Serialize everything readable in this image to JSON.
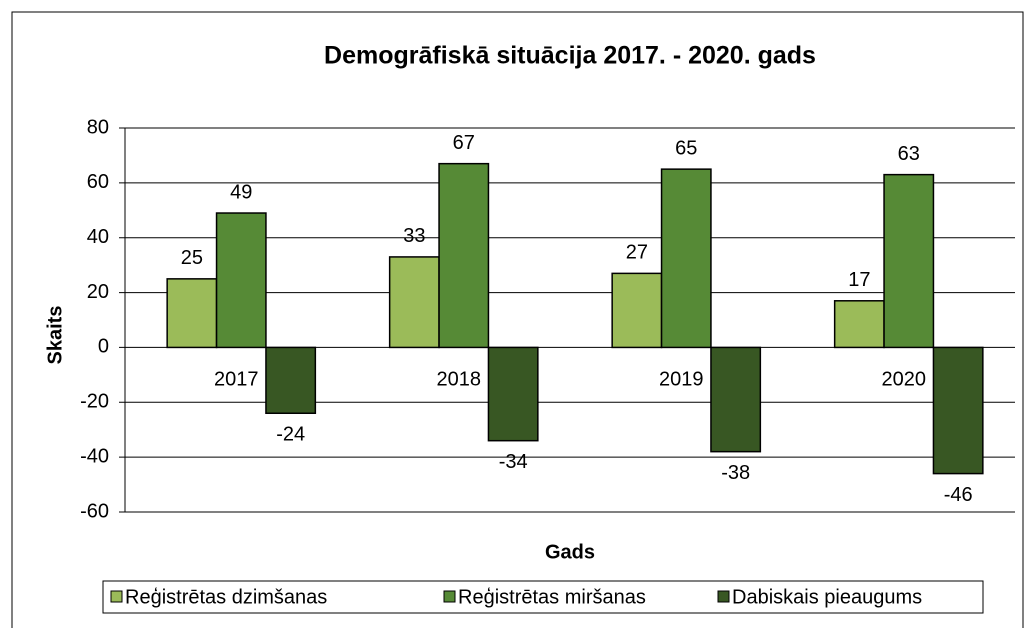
{
  "chart_data": {
    "type": "bar",
    "title": "Demogrāfiskā situācija 2017. - 2020. gads",
    "xlabel": "Gads",
    "ylabel": "Skaits",
    "categories": [
      "2017",
      "2018",
      "2019",
      "2020"
    ],
    "series": [
      {
        "name": "Reģistrētas dzimšanas",
        "color": "#9bbb59",
        "values": [
          25,
          33,
          27,
          17
        ]
      },
      {
        "name": "Reģistrētas miršanas",
        "color": "#568a36",
        "values": [
          49,
          67,
          65,
          63
        ]
      },
      {
        "name": "Dabiskais pieaugums",
        "color": "#385723",
        "values": [
          -24,
          -34,
          -38,
          -46
        ]
      }
    ],
    "ylim": [
      -60,
      80
    ],
    "yticks": [
      -60,
      -40,
      -20,
      0,
      20,
      40,
      60,
      80
    ],
    "grid": true,
    "legend": "bottom"
  }
}
